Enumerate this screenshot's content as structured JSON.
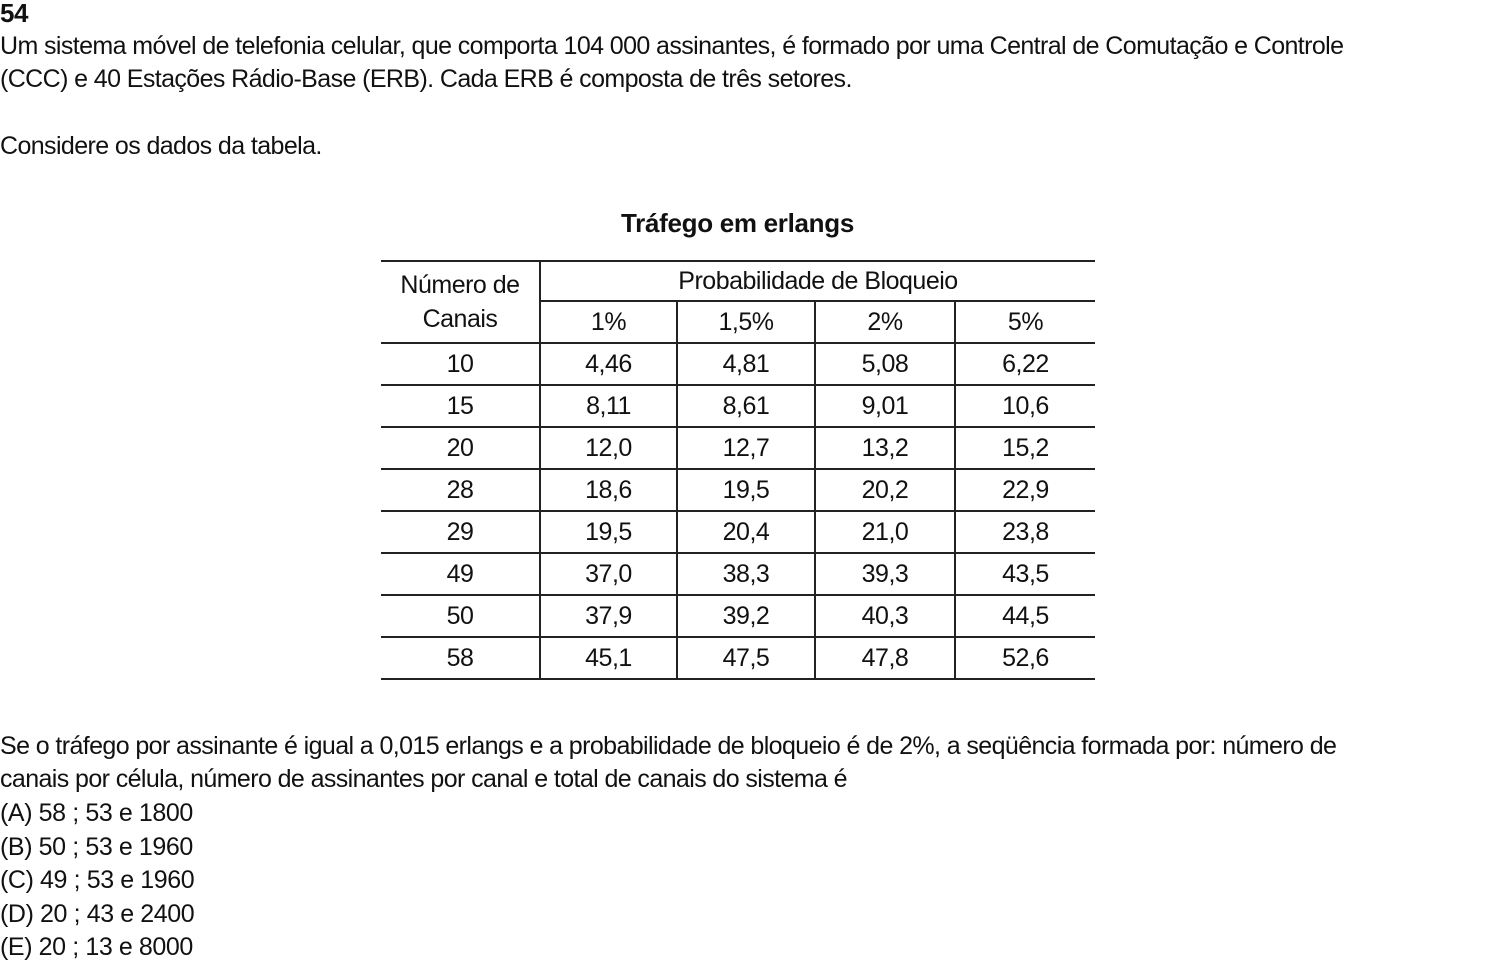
{
  "question": {
    "number": "54",
    "intro_lines": [
      "Um sistema móvel de telefonia celular, que comporta 104 000 assinantes, é formado por uma Central de Comutação e Controle",
      "(CCC) e 40 Estações Rádio-Base (ERB). Cada ERB é composta de três setores."
    ],
    "consider": "Considere os dados da tabela.",
    "prompt_lines": [
      "Se o tráfego por assinante é igual a 0,015 erlangs e a probabilidade de bloqueio é de 2%, a seqüência formada por: número de",
      "canais por célula, número de assinantes por canal e total de canais do sistema é"
    ],
    "options": [
      "(A) 58 ; 53 e 1800",
      "(B) 50 ; 53 e 1960",
      "(C) 49 ; 53 e 1960",
      "(D) 20 ; 43 e 2400",
      "(E) 20 ; 13 e 8000"
    ]
  },
  "table": {
    "caption": "Tráfego em erlangs",
    "col_header_line1": "Número de",
    "col_header_line2": "Canais",
    "group_header": "Probabilidade de Bloqueio",
    "prob_headers": [
      "1%",
      "1,5%",
      "2%",
      "5%"
    ],
    "rows": [
      [
        "10",
        "4,46",
        "4,81",
        "5,08",
        "6,22"
      ],
      [
        "15",
        "8,11",
        "8,61",
        "9,01",
        "10,6"
      ],
      [
        "20",
        "12,0",
        "12,7",
        "13,2",
        "15,2"
      ],
      [
        "28",
        "18,6",
        "19,5",
        "20,2",
        "22,9"
      ],
      [
        "29",
        "19,5",
        "20,4",
        "21,0",
        "23,8"
      ],
      [
        "49",
        "37,0",
        "38,3",
        "39,3",
        "43,5"
      ],
      [
        "50",
        "37,9",
        "39,2",
        "40,3",
        "44,5"
      ],
      [
        "58",
        "45,1",
        "47,5",
        "47,8",
        "52,6"
      ]
    ]
  }
}
